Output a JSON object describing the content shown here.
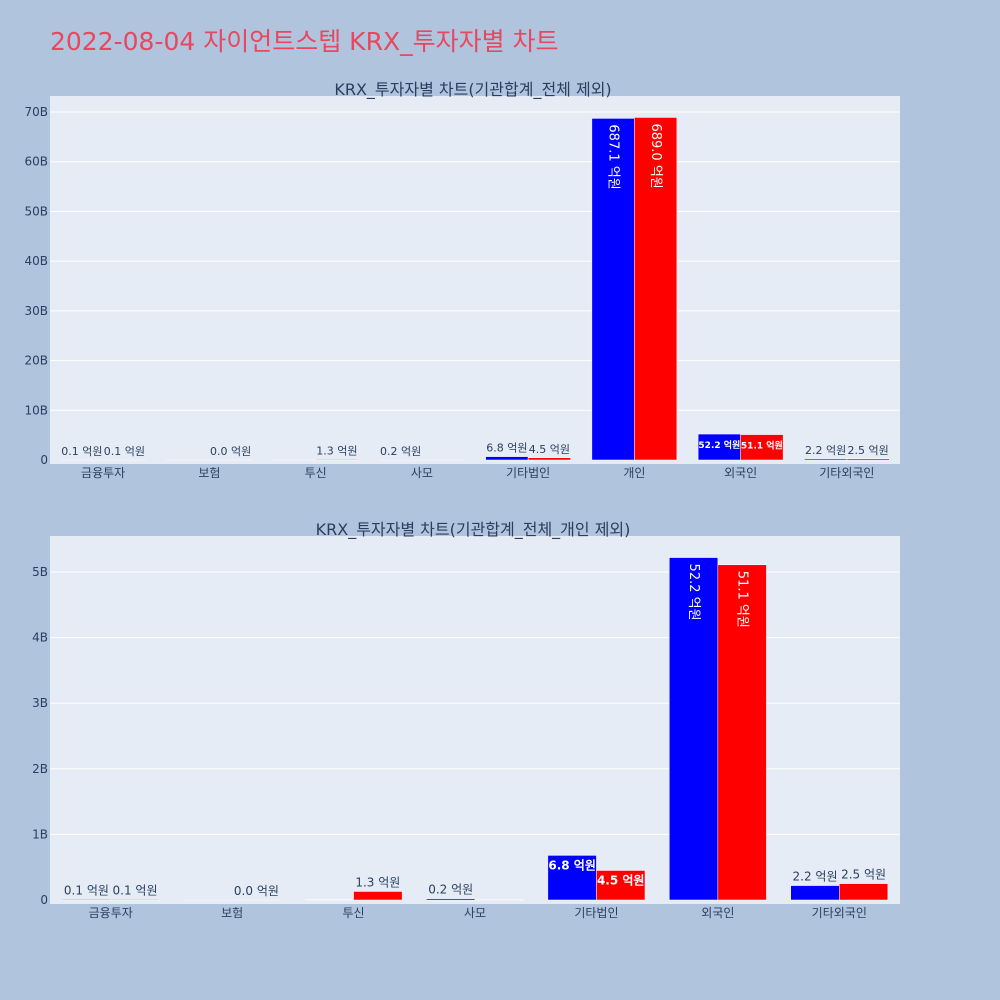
{
  "page_title": "2022-08-04 자이언트스텝 KRX_투자자별 차트",
  "chart_data": [
    {
      "type": "bar",
      "title": "KRX_투자자별 차트(기관합계_전체 제외)",
      "categories": [
        "금융투자",
        "보험",
        "투신",
        "사모",
        "기타법인",
        "개인",
        "외국인",
        "기타외국인"
      ],
      "series": [
        {
          "color": "#0000ff",
          "values": [
            10000000,
            2000000,
            5000000,
            20000000,
            680000000,
            68710000000,
            5220000000,
            220000000
          ],
          "labels": [
            "0.1 억원",
            "",
            "",
            "0.2 억원",
            "6.8 억원",
            "687.1 억원",
            "52.2 억원",
            "2.2 억원"
          ]
        },
        {
          "color": "#ff0000",
          "values": [
            10000000,
            1000000,
            130000000,
            8000000,
            450000000,
            68900000000,
            5110000000,
            250000000
          ],
          "labels": [
            "0.1 억원",
            "0.0 억원",
            "1.3 억원",
            "",
            "4.5 억원",
            "689.0 억원",
            "51.1 억원",
            "2.5 억원"
          ]
        }
      ],
      "y_ticks": [
        "0",
        "10B",
        "20B",
        "30B",
        "40B",
        "50B",
        "60B",
        "70B"
      ],
      "ylim": [
        0,
        70000000000
      ],
      "grid": true
    },
    {
      "type": "bar",
      "title": "KRX_투자자별 차트(기관합계_전체_개인 제외)",
      "categories": [
        "금융투자",
        "보험",
        "투신",
        "사모",
        "기타법인",
        "외국인",
        "기타외국인"
      ],
      "series": [
        {
          "color": "#0000ff",
          "values": [
            10000000,
            2000000,
            5000000,
            20000000,
            680000000,
            5220000000,
            220000000
          ],
          "labels": [
            "0.1 억원",
            "",
            "",
            "0.2 억원",
            "6.8 억원",
            "52.2 억원",
            "2.2 억원"
          ]
        },
        {
          "color": "#ff0000",
          "values": [
            10000000,
            1000000,
            130000000,
            8000000,
            450000000,
            5110000000,
            250000000
          ],
          "labels": [
            "0.1 억원",
            "0.0 억원",
            "1.3 억원",
            "",
            "4.5 억원",
            "51.1 억원",
            "2.5 억원"
          ]
        }
      ],
      "y_ticks": [
        "0",
        "1B",
        "2B",
        "3B",
        "4B",
        "5B"
      ],
      "ylim": [
        0,
        5000000000
      ],
      "grid": true
    }
  ]
}
